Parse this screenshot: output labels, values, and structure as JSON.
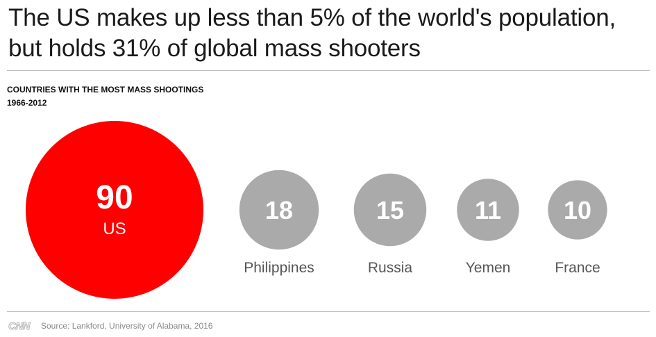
{
  "headline": {
    "line1": "The US makes up less than 5% of the world's population,",
    "line2": "but holds 31% of global mass shooters"
  },
  "subhead": {
    "title": "COUNTRIES WITH THE MOST MASS SHOOTINGS",
    "period": "1966-2012"
  },
  "footer": {
    "logo": "CNN",
    "source": "Source: Lankford, University of Alabama, 2016"
  },
  "colors": {
    "highlight": "#ff0000",
    "default": "#aaaaaa",
    "label": "#555555"
  },
  "chart_data": {
    "type": "bubble",
    "title": "COUNTRIES WITH THE MOST MASS SHOOTINGS",
    "subtitle": "1966-2012",
    "categories": [
      "US",
      "Philippines",
      "Russia",
      "Yemen",
      "France"
    ],
    "values": [
      90,
      18,
      15,
      11,
      10
    ],
    "highlight": "US"
  }
}
